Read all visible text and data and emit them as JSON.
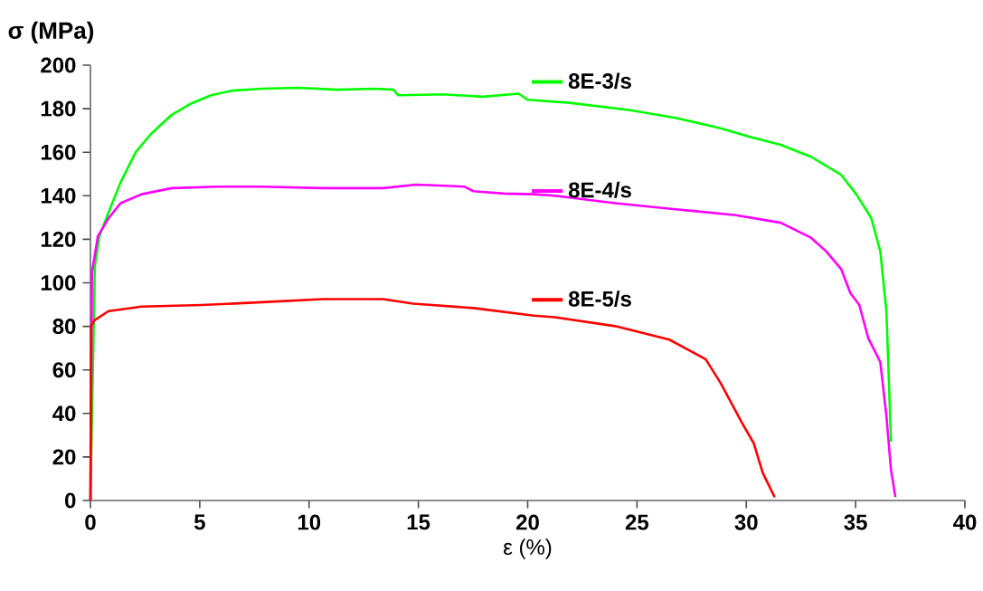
{
  "chart_data": {
    "type": "line",
    "xlabel": "ε (%)",
    "ylabel": "σ (MPa)",
    "xlim": [
      0,
      40
    ],
    "ylim": [
      0,
      200
    ],
    "xticks": [
      0,
      5,
      10,
      15,
      20,
      25,
      30,
      35,
      40
    ],
    "yticks": [
      0,
      20,
      40,
      60,
      80,
      100,
      120,
      140,
      160,
      180,
      200
    ],
    "legend": "top",
    "marker": "none",
    "line_style": "solid",
    "series": [
      {
        "name": "8E-3/s",
        "color": "#00ff00",
        "x": [
          0,
          0.07,
          0.2,
          0.41,
          0.83,
          1.38,
          2.07,
          2.76,
          3.72,
          4.55,
          5.52,
          6.48,
          7.86,
          9.52,
          11.31,
          12.97,
          13.86,
          14.07,
          16.14,
          17.93,
          19.59,
          20.0,
          21.93,
          24.69,
          26.76,
          28.83,
          30.2,
          31.58,
          32.96,
          34.34,
          35.03,
          35.72,
          36.13,
          36.41,
          36.62
        ],
        "values": [
          0,
          null,
          107.6,
          121.4,
          132.4,
          146.2,
          160,
          168.3,
          177.2,
          182.1,
          186.2,
          188.3,
          189.2,
          189.6,
          188.7,
          189.2,
          188.7,
          186.2,
          186.6,
          185.5,
          186.9,
          184.1,
          182.7,
          179.3,
          175.8,
          171,
          166.9,
          163.4,
          157.9,
          149.6,
          140.7,
          129.7,
          114.5,
          86.9,
          27.0
        ]
      },
      {
        "name": "8E-4/s",
        "color": "#ff00ff",
        "x": [
          0,
          0.07,
          0.34,
          0.83,
          1.38,
          2.34,
          3.72,
          5.79,
          7.86,
          10.62,
          13.38,
          14.9,
          17.1,
          17.52,
          18.9,
          20.28,
          21.24,
          24,
          26.76,
          29.52,
          31.58,
          32.96,
          33.65,
          34.34,
          34.76,
          35.17,
          35.58,
          36.13,
          36.41,
          36.62,
          36.82
        ],
        "values": [
          0,
          104.8,
          121.4,
          129.7,
          136.6,
          140.7,
          143.5,
          144.2,
          144.2,
          143.5,
          143.5,
          145.1,
          144.2,
          142.1,
          141,
          140.7,
          140,
          136.6,
          133.8,
          131.1,
          127.6,
          120.7,
          114.5,
          106.3,
          95.3,
          89.8,
          74.6,
          63.6,
          38.8,
          14,
          1.6
        ]
      },
      {
        "name": "8E-5/s",
        "color": "#ff0000",
        "x": [
          0,
          0.03,
          0.2,
          0.83,
          2.34,
          5.1,
          7.86,
          10.62,
          13.38,
          14.76,
          17.52,
          20.28,
          21.24,
          24,
          26.48,
          28.14,
          28.83,
          29.79,
          30.34,
          30.76,
          31.3
        ],
        "values": [
          0,
          80.1,
          82.9,
          87,
          89.1,
          89.8,
          91.1,
          92.5,
          92.5,
          90.4,
          88.4,
          84.9,
          84.2,
          80.1,
          73.9,
          64.9,
          53.9,
          35.9,
          26.3,
          12.5,
          1.5
        ]
      }
    ]
  }
}
